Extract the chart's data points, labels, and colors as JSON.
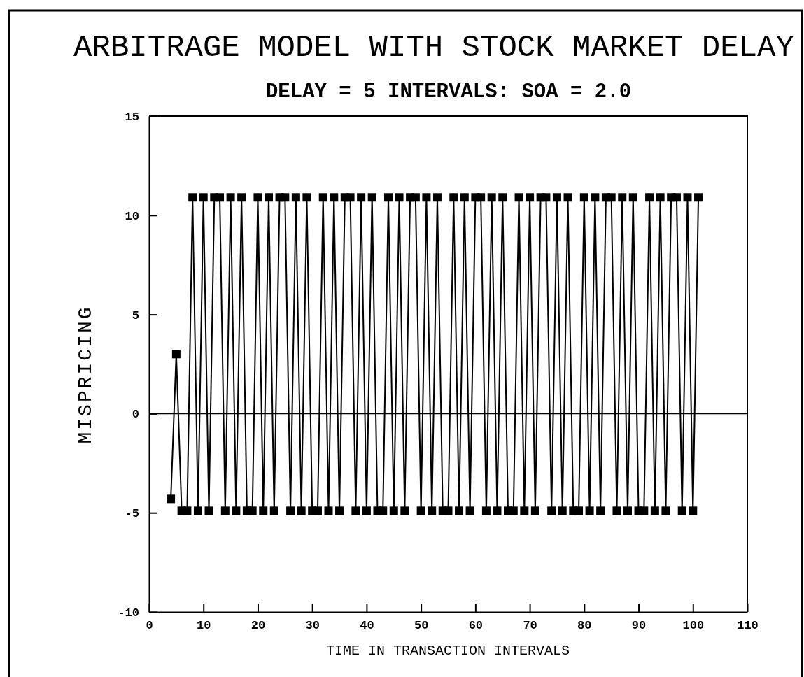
{
  "chart_data": {
    "type": "line",
    "title": "ARBITRAGE MODEL WITH STOCK MARKET DELAY",
    "subtitle": "DELAY = 5 INTERVALS: SOA = 2.0",
    "xlabel": "TIME IN TRANSACTION INTERVALS",
    "ylabel": "MISPRICING",
    "x": [
      4,
      5,
      6,
      7,
      8,
      9,
      10,
      11,
      12,
      13,
      14,
      15,
      16,
      17,
      18,
      19,
      20,
      21,
      22,
      23,
      24,
      25,
      26,
      27,
      28,
      29,
      30,
      31,
      32,
      33,
      34,
      35,
      36,
      37,
      38,
      39,
      40,
      41,
      42,
      43,
      44,
      45,
      46,
      47,
      48,
      49,
      50,
      51,
      52,
      53,
      54,
      55,
      56,
      57,
      58,
      59,
      60,
      61,
      62,
      63,
      64,
      65,
      66,
      67,
      68,
      69,
      70,
      71,
      72,
      73,
      74,
      75,
      76,
      77,
      78,
      79,
      80,
      81,
      82,
      83,
      84,
      85,
      86,
      87,
      88,
      89,
      90,
      91,
      92,
      93,
      94,
      95,
      96,
      97,
      98,
      99,
      100,
      101
    ],
    "series": [
      {
        "color": "#000000",
        "values": [
          -4.3,
          3.0,
          -4.9,
          -4.9,
          10.9,
          -4.9,
          10.9,
          -4.9,
          10.9,
          10.9,
          -4.9,
          10.9,
          -4.9,
          10.9,
          -4.9,
          -4.9,
          10.9,
          -4.9,
          10.9,
          -4.9,
          10.9,
          10.9,
          -4.9,
          10.9,
          -4.9,
          10.9,
          -4.9,
          -4.9,
          10.9,
          -4.9,
          10.9,
          -4.9,
          10.9,
          10.9,
          -4.9,
          10.9,
          -4.9,
          10.9,
          -4.9,
          -4.9,
          10.9,
          -4.9,
          10.9,
          -4.9,
          10.9,
          10.9,
          -4.9,
          10.9,
          -4.9,
          10.9,
          -4.9,
          -4.9,
          10.9,
          -4.9,
          10.9,
          -4.9,
          10.9,
          10.9,
          -4.9,
          10.9,
          -4.9,
          10.9,
          -4.9,
          -4.9,
          10.9,
          -4.9,
          10.9,
          -4.9,
          10.9,
          10.9,
          -4.9,
          10.9,
          -4.9,
          10.9,
          -4.9,
          -4.9,
          10.9,
          -4.9,
          10.9,
          -4.9,
          10.9,
          10.9,
          -4.9,
          10.9,
          -4.9,
          10.9,
          -4.9,
          -4.9,
          10.9,
          -4.9,
          10.9,
          -4.9,
          10.9,
          10.9,
          -4.9,
          10.9,
          -4.9,
          10.9
        ]
      }
    ],
    "xlim": [
      0,
      110
    ],
    "xticks": [
      0,
      10,
      20,
      30,
      40,
      50,
      60,
      70,
      80,
      90,
      100,
      110
    ],
    "ylim": [
      -10,
      15
    ],
    "yticks": [
      -10,
      -5,
      0,
      5,
      10,
      15
    ],
    "marker": "square",
    "ref_lines": [
      {
        "axis": "y",
        "value": 0,
        "color": "#000000"
      }
    ]
  }
}
